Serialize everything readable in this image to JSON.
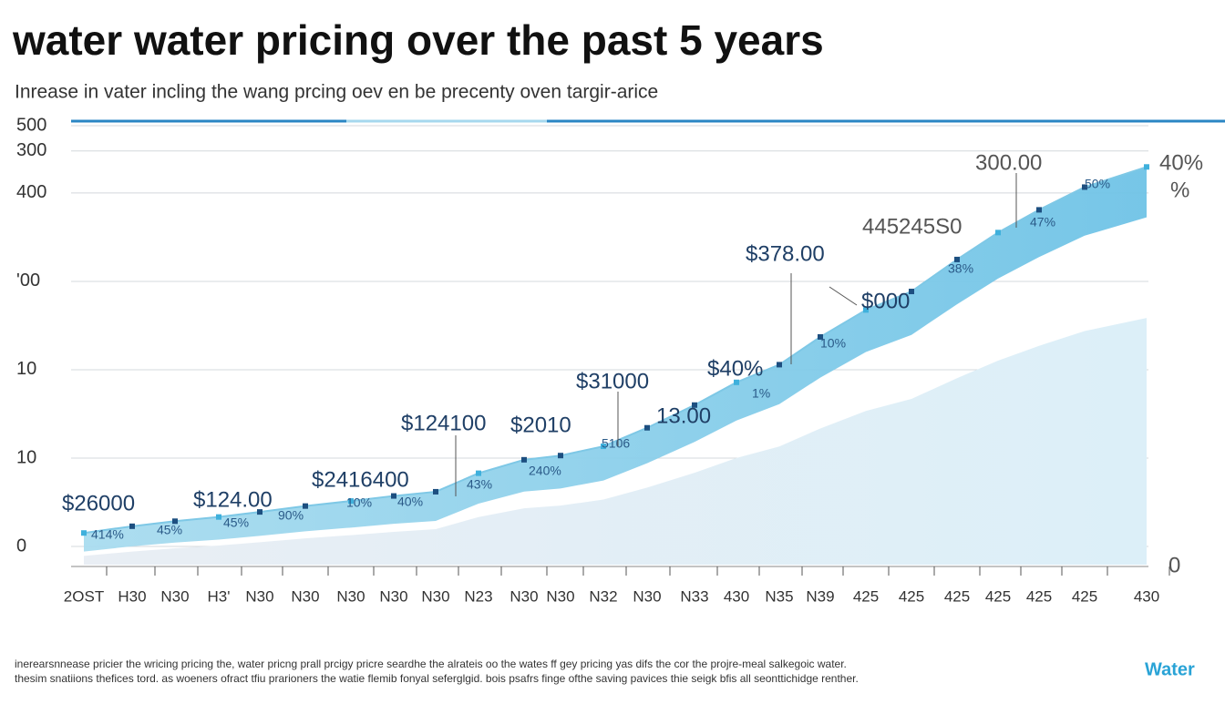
{
  "chart_data": {
    "type": "area",
    "title": "water water pricing over  the past 5 years",
    "subtitle": "Inrease in vater incling the wang prcing oev en be precenty oven targir-arice",
    "categories": [
      "2OST",
      "H30",
      "N30",
      "H3'",
      "N30",
      "N30",
      "N30",
      "N30",
      "N30",
      "N23",
      "N30",
      "N30",
      "N32",
      "N30",
      "N33",
      "430",
      "N35",
      "N39",
      "425",
      "425",
      "425",
      "425",
      "425",
      "425",
      "430"
    ],
    "series": [
      {
        "color": "#7ec8e6",
        "values": [
          16,
          24,
          30,
          35,
          41,
          48,
          54,
          60,
          65,
          87,
          103,
          108,
          119,
          141,
          168,
          195,
          216,
          249,
          281,
          303,
          341,
          373,
          400,
          427,
          451
        ]
      }
    ],
    "ylim": [
      0,
      500
    ],
    "yticks": [
      0,
      {
        "value": 105,
        "label": "10"
      },
      {
        "value": 210,
        "label": "10"
      },
      {
        "value": 315,
        "label": "'00"
      },
      {
        "value": 420,
        "label": "400"
      },
      {
        "value": 470,
        "label": "300"
      },
      500
    ],
    "grid": true,
    "annotations": [
      "$26000",
      "$124.00",
      "$2416400",
      "$124100",
      "$2010",
      "$31000",
      "13.00",
      "$40%",
      "$378.00",
      "$000",
      "445245S0",
      "300.00",
      "414%",
      "45%",
      "45%",
      "90%",
      "10%",
      "40%",
      "43%",
      "240%",
      "5106",
      "1%",
      "10%",
      "38%",
      "47%",
      "50%",
      "40%",
      "%",
      "0"
    ],
    "footer": [
      "inerearsnnease pricier the wricing pricing the, water pricng prall prcigy pricre seardhe the alrateis oo the wates ff gey pricing yas difs the cor the projre-meal salkegoic water.",
      "thesim snatiions thefices tord. as woeners ofract tfiu prarioners the watie flemib fonyal seferglgid. bois psafrs finge ofthe saving pavices thie seigk bfis all seonttichidge renther."
    ],
    "brand": "Water"
  }
}
